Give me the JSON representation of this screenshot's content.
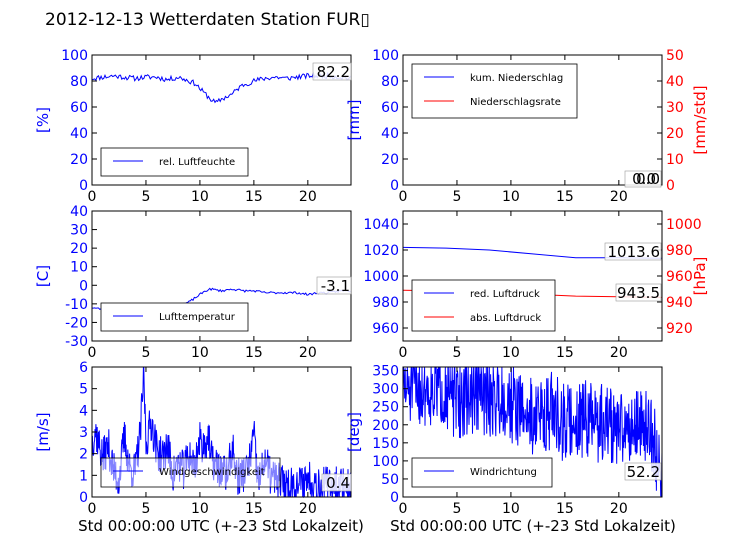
{
  "figure": {
    "title": "2012-12-13 Wetterdaten Station FUR▯",
    "xlabel": "Std 00:00:00 UTC (+-23 Std Lokalzeit)",
    "x_ticks": [
      0,
      5,
      10,
      15,
      20
    ],
    "colors": {
      "primary": "#0000ff",
      "secondary": "#ff0000",
      "frame": "#000000"
    }
  },
  "chart_data": [
    {
      "id": "humidity",
      "type": "line",
      "ylabel": "[%]",
      "xlim": [
        0,
        24
      ],
      "ylim": [
        0,
        100
      ],
      "yticks": [
        0,
        20,
        40,
        60,
        80,
        100
      ],
      "current_value": "82.2",
      "legend": {
        "location": "lower-left",
        "entries": [
          "rel. Luftfeuchte"
        ]
      },
      "series": [
        {
          "name": "rel. Luftfeuchte",
          "color": "#0000ff",
          "noise": 2.0,
          "seed": 11,
          "points": [
            [
              0,
              82
            ],
            [
              1,
              83
            ],
            [
              2,
              84
            ],
            [
              3,
              83
            ],
            [
              4,
              82
            ],
            [
              5,
              83
            ],
            [
              6,
              83
            ],
            [
              7,
              81
            ],
            [
              8,
              83
            ],
            [
              9,
              80
            ],
            [
              9.6,
              78
            ],
            [
              10,
              74
            ],
            [
              10.5,
              70
            ],
            [
              11,
              66
            ],
            [
              11.5,
              63
            ],
            [
              12,
              66
            ],
            [
              12.5,
              68
            ],
            [
              13,
              70
            ],
            [
              13.5,
              74
            ],
            [
              14,
              77
            ],
            [
              15,
              80
            ],
            [
              16,
              82
            ],
            [
              17,
              83
            ],
            [
              18,
              82
            ],
            [
              19,
              83
            ],
            [
              20,
              84
            ],
            [
              21,
              84
            ],
            [
              22,
              84
            ],
            [
              23,
              83
            ],
            [
              24,
              82
            ]
          ]
        }
      ]
    },
    {
      "id": "precipitation",
      "type": "line",
      "ylabel": "[mm]",
      "y2label": "[mm/std]",
      "xlim": [
        0,
        24
      ],
      "ylim": [
        0,
        100
      ],
      "y2lim": [
        0,
        50
      ],
      "yticks": [
        0,
        20,
        40,
        60,
        80,
        100
      ],
      "y2ticks": [
        0,
        10,
        20,
        30,
        40,
        50
      ],
      "current_value": "0.0",
      "current_value_2": "0.0",
      "legend": {
        "location": "top-left",
        "entries": [
          "kum. Niederschlag",
          "Niederschlagsrate"
        ]
      },
      "series": [
        {
          "name": "kum. Niederschlag",
          "axis": "left",
          "color": "#0000ff",
          "points": [
            [
              0,
              0
            ],
            [
              24,
              0
            ]
          ]
        },
        {
          "name": "Niederschlagsrate",
          "axis": "right",
          "color": "#ff0000",
          "points": [
            [
              0,
              0
            ],
            [
              24,
              0
            ]
          ]
        }
      ]
    },
    {
      "id": "temperature",
      "type": "line",
      "ylabel": "[C]",
      "xlim": [
        0,
        24
      ],
      "ylim": [
        -30,
        40
      ],
      "yticks": [
        -30,
        -20,
        -10,
        0,
        10,
        20,
        30,
        40
      ],
      "current_value": "-3.1",
      "legend": {
        "location": "lower-left",
        "entries": [
          "Lufttemperatur"
        ]
      },
      "series": [
        {
          "name": "Lufttemperatur",
          "color": "#0000ff",
          "noise": 0.6,
          "seed": 23,
          "points": [
            [
              0,
              -12
            ],
            [
              1,
              -13
            ],
            [
              2,
              -13
            ],
            [
              3,
              -14
            ],
            [
              4,
              -13
            ],
            [
              5,
              -12
            ],
            [
              6,
              -12
            ],
            [
              7,
              -11
            ],
            [
              8,
              -11
            ],
            [
              9,
              -9
            ],
            [
              9.5,
              -7
            ],
            [
              10,
              -5
            ],
            [
              10.5,
              -3
            ],
            [
              11,
              -2
            ],
            [
              12,
              -3
            ],
            [
              13,
              -2
            ],
            [
              14,
              -3
            ],
            [
              15,
              -3
            ],
            [
              16,
              -4
            ],
            [
              17,
              -4
            ],
            [
              18,
              -4
            ],
            [
              19,
              -4
            ],
            [
              20,
              -5
            ],
            [
              21,
              -4
            ],
            [
              22,
              -4
            ],
            [
              23,
              -3
            ],
            [
              24,
              -3
            ]
          ]
        }
      ]
    },
    {
      "id": "pressure",
      "type": "line",
      "ylabel": "",
      "y2label": "[hPa]",
      "xlim": [
        0,
        24
      ],
      "ylim": [
        950,
        1050
      ],
      "y2lim": [
        910,
        1010
      ],
      "yticks": [
        960,
        980,
        1000,
        1020,
        1040
      ],
      "y2ticks": [
        920,
        940,
        960,
        980,
        1000
      ],
      "current_value": "1013.6",
      "current_value_2": "943.5",
      "legend": {
        "location": "lower-left",
        "entries": [
          "red. Luftdruck",
          "abs. Luftdruck"
        ]
      },
      "series": [
        {
          "name": "red. Luftdruck",
          "axis": "left",
          "color": "#0000ff",
          "points": [
            [
              0,
              1022
            ],
            [
              4,
              1021.5
            ],
            [
              8,
              1020
            ],
            [
              12,
              1017
            ],
            [
              16,
              1014
            ],
            [
              20,
              1014
            ],
            [
              24,
              1013.6
            ]
          ]
        },
        {
          "name": "abs. Luftdruck",
          "axis": "left",
          "color": "#ff0000",
          "points": [
            [
              0,
              989
            ],
            [
              4,
              988.5
            ],
            [
              8,
              988
            ],
            [
              12,
              986
            ],
            [
              16,
              984.5
            ],
            [
              20,
              984
            ],
            [
              24,
              983.5
            ]
          ]
        }
      ]
    },
    {
      "id": "windspeed",
      "type": "line",
      "ylabel": "[m/s]",
      "xlim": [
        0,
        24
      ],
      "ylim": [
        0,
        6
      ],
      "yticks": [
        0,
        1,
        2,
        3,
        4,
        5,
        6
      ],
      "current_value": "0.4",
      "legend": {
        "location": "lower-left",
        "entries": [
          "Windgeschwindigkeit"
        ]
      },
      "series": [
        {
          "name": "Windgeschwindigkeit",
          "color": "#0000ff",
          "noise": 0.9,
          "seed": 37,
          "floor": 0,
          "points": [
            [
              0,
              2.5
            ],
            [
              0.3,
              3.1
            ],
            [
              1,
              1.8
            ],
            [
              1.5,
              2.4
            ],
            [
              2,
              1.2
            ],
            [
              2.5,
              0.8
            ],
            [
              3,
              2.8
            ],
            [
              3.5,
              1.3
            ],
            [
              4,
              1.2
            ],
            [
              4.5,
              3.0
            ],
            [
              4.8,
              5.7
            ],
            [
              5,
              2.5
            ],
            [
              5.5,
              3.5
            ],
            [
              6,
              2.2
            ],
            [
              6.5,
              1.8
            ],
            [
              7,
              2.4
            ],
            [
              7.5,
              1.0
            ],
            [
              8,
              1.6
            ],
            [
              8.5,
              1.2
            ],
            [
              9,
              2.0
            ],
            [
              9.5,
              1.4
            ],
            [
              10,
              2.6
            ],
            [
              10.3,
              2.4
            ],
            [
              10.8,
              2.8
            ],
            [
              11,
              1.8
            ],
            [
              11.5,
              1.4
            ],
            [
              12,
              1.2
            ],
            [
              12.5,
              1.0
            ],
            [
              13,
              2.2
            ],
            [
              13.5,
              0.9
            ],
            [
              14,
              1.1
            ],
            [
              14.5,
              1.3
            ],
            [
              15,
              2.9
            ],
            [
              15.3,
              1.0
            ],
            [
              15.6,
              0.8
            ],
            [
              16,
              1.8
            ],
            [
              16.5,
              1.0
            ],
            [
              17,
              0.8
            ],
            [
              18,
              0.6
            ],
            [
              19,
              0.5
            ],
            [
              20,
              0.9
            ],
            [
              21,
              0.6
            ],
            [
              22,
              0.5
            ],
            [
              23,
              0.6
            ],
            [
              24,
              0.4
            ]
          ]
        }
      ]
    },
    {
      "id": "winddirection",
      "type": "line",
      "ylabel": "[deg]",
      "xlim": [
        0,
        24
      ],
      "ylim": [
        0,
        360
      ],
      "yticks": [
        0,
        50,
        100,
        150,
        200,
        250,
        300,
        350
      ],
      "current_value": "52.2",
      "legend": {
        "location": "lower-left",
        "entries": [
          "Windrichtung"
        ]
      },
      "series": [
        {
          "name": "Windrichtung",
          "color": "#0000ff",
          "noise": 110,
          "seed": 51,
          "floor": 0,
          "ceil": 360,
          "points": [
            [
              0,
              300
            ],
            [
              2,
              305
            ],
            [
              4,
              300
            ],
            [
              5,
              260
            ],
            [
              6,
              280
            ],
            [
              7,
              290
            ],
            [
              8,
              270
            ],
            [
              9,
              280
            ],
            [
              10,
              260
            ],
            [
              11,
              240
            ],
            [
              12,
              220
            ],
            [
              13,
              230
            ],
            [
              14,
              240
            ],
            [
              15,
              200
            ],
            [
              16,
              210
            ],
            [
              17,
              220
            ],
            [
              18,
              200
            ],
            [
              19,
              210
            ],
            [
              20,
              180
            ],
            [
              21,
              200
            ],
            [
              22,
              200
            ],
            [
              23,
              180
            ],
            [
              24,
              52
            ]
          ]
        }
      ]
    }
  ]
}
